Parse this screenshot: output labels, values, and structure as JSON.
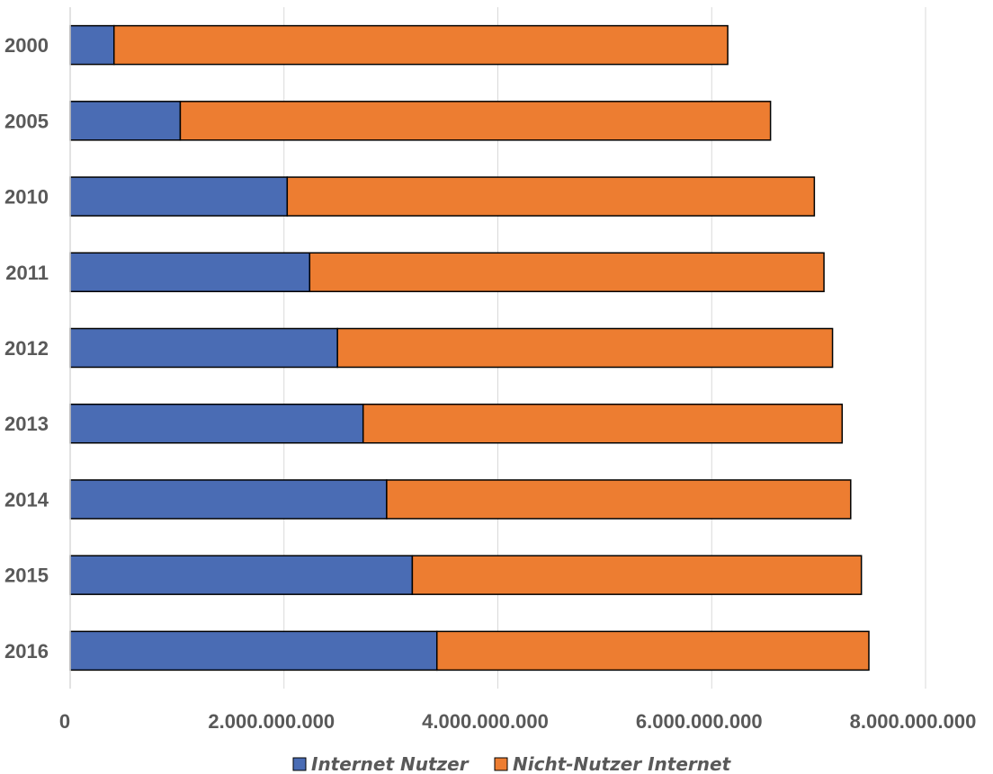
{
  "chart_data": {
    "type": "bar",
    "orientation": "horizontal",
    "stacked": true,
    "title": "",
    "xlabel": "",
    "ylabel": "",
    "categories": [
      "2000",
      "2005",
      "2010",
      "2011",
      "2012",
      "2013",
      "2014",
      "2015",
      "2016"
    ],
    "series": [
      {
        "name": "Internet Nutzer",
        "color": "#4a6cb4",
        "values": [
          410000000,
          1030000000,
          2030000000,
          2240000000,
          2500000000,
          2740000000,
          2960000000,
          3200000000,
          3430000000
        ]
      },
      {
        "name": "Nicht-Nutzer Internet",
        "color": "#ed7d31",
        "values": [
          5740000000,
          5520000000,
          4930000000,
          4810000000,
          4630000000,
          4480000000,
          4340000000,
          4200000000,
          4040000000
        ]
      }
    ],
    "xlim": [
      0,
      8000000000
    ],
    "x_ticks": [
      0,
      2000000000,
      4000000000,
      6000000000,
      8000000000
    ],
    "x_tick_labels": [
      "0",
      "2.000.000.000",
      "4.000.000.000",
      "6.000.000.000",
      "8.000.000.000"
    ],
    "grid": "vertical",
    "legend": "bottom"
  }
}
